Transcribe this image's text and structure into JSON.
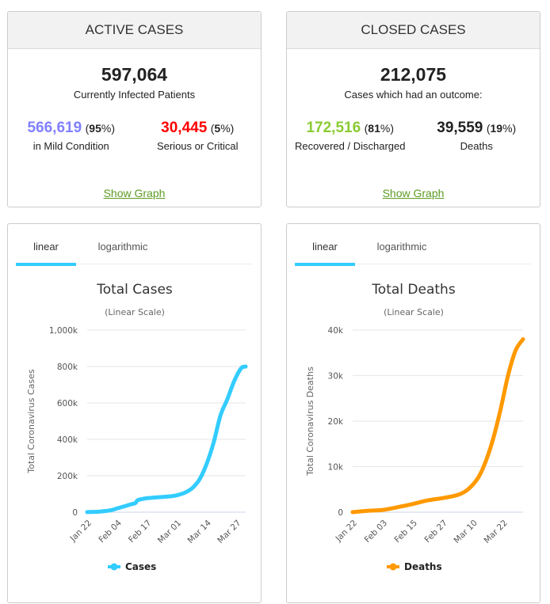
{
  "active": {
    "title": "ACTIVE CASES",
    "total": "597,064",
    "total_label": "Currently Infected Patients",
    "mild": {
      "value": "566,619",
      "pct": "95",
      "label": "in Mild Condition",
      "color": "#8080ff"
    },
    "serious": {
      "value": "30,445",
      "pct": "5",
      "label": "Serious or Critical",
      "color": "#ff0000"
    },
    "link": "Show Graph"
  },
  "closed": {
    "title": "CLOSED CASES",
    "total": "212,075",
    "total_label": "Cases which had an outcome:",
    "recovered": {
      "value": "172,516",
      "pct": "81",
      "label": "Recovered / Discharged",
      "color": "#8acb33"
    },
    "deaths": {
      "value": "39,559",
      "pct": "19",
      "label": "Deaths",
      "color": "#222222"
    },
    "link": "Show Graph"
  },
  "tabs": {
    "linear": "linear",
    "log": "logarithmic"
  },
  "chart_data": [
    {
      "type": "line",
      "title": "Total Cases",
      "subtitle": "(Linear Scale)",
      "ylabel": "Total Coronavirus Cases",
      "xlabel": "",
      "x_ticks": [
        "Jan 22",
        "Feb 04",
        "Feb 17",
        "Mar 01",
        "Mar 14",
        "Mar 27"
      ],
      "y_ticks": [
        "0",
        "200k",
        "400k",
        "600k",
        "800k",
        "1,000k"
      ],
      "ylim": [
        0,
        1000000
      ],
      "grid": true,
      "legend": "bottom-center",
      "color": "#33ccff",
      "series": [
        {
          "name": "Cases",
          "x_day_index": [
            0,
            5,
            10,
            13,
            16,
            19,
            21,
            22,
            25,
            28,
            31,
            34,
            37,
            40,
            43,
            46,
            49,
            52,
            55,
            58,
            61,
            64,
            67,
            69
          ],
          "values": [
            555,
            2800,
            9800,
            20600,
            31500,
            43000,
            50000,
            66000,
            75000,
            79000,
            82000,
            85000,
            88000,
            96000,
            110000,
            135000,
            182000,
            265000,
            380000,
            530000,
            620000,
            720000,
            790000,
            800000
          ]
        }
      ]
    },
    {
      "type": "line",
      "title": "Total Deaths",
      "subtitle": "(Linear Scale)",
      "ylabel": "Total Coronavirus Deaths",
      "xlabel": "",
      "x_ticks": [
        "Jan 22",
        "Feb 03",
        "Feb 15",
        "Feb 27",
        "Mar 10",
        "Mar 22"
      ],
      "y_ticks": [
        "0",
        "10k",
        "20k",
        "30k",
        "40k"
      ],
      "ylim": [
        0,
        40000
      ],
      "grid": true,
      "legend": "bottom-center",
      "color": "#ff9900",
      "series": [
        {
          "name": "Deaths",
          "x_day_index": [
            0,
            6,
            12,
            18,
            24,
            30,
            36,
            42,
            46,
            50,
            53,
            56,
            59,
            62,
            65,
            68
          ],
          "values": [
            17,
            300,
            500,
            1100,
            1800,
            2600,
            3100,
            3800,
            5000,
            7500,
            11000,
            16000,
            22500,
            30000,
            35500,
            38000
          ]
        }
      ]
    }
  ]
}
